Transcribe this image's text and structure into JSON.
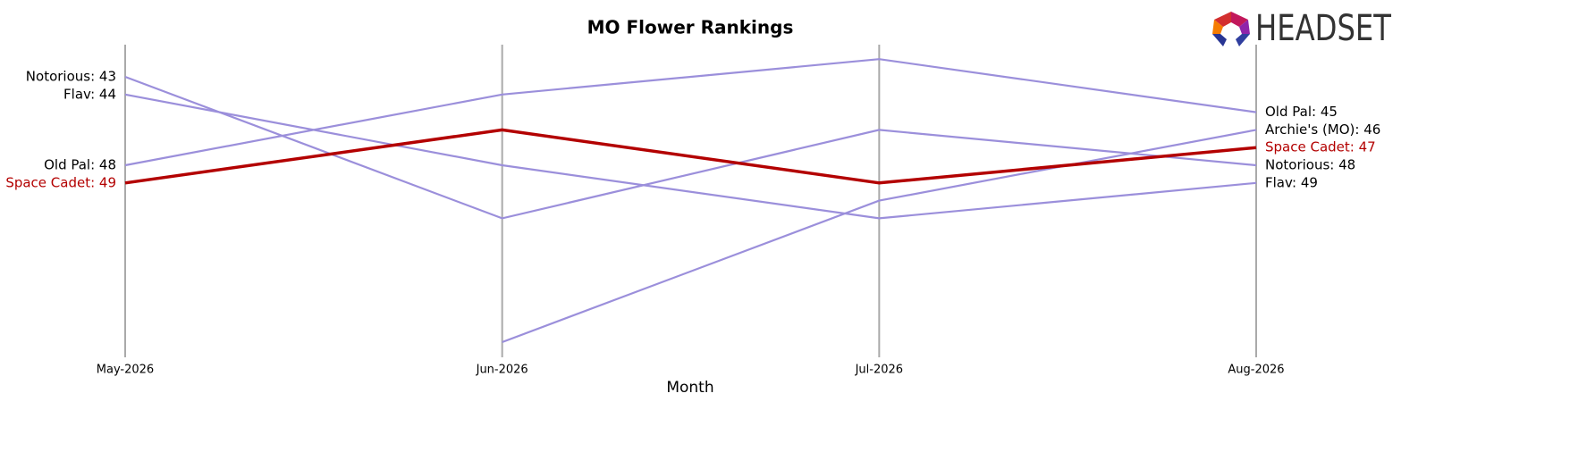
{
  "chart_data": {
    "type": "bump",
    "title": "MO Flower Rankings",
    "x_label": "Month",
    "logo": "HEADSET",
    "categories": [
      "May-2026",
      "Jun-2026",
      "Jul-2026",
      "Aug-2026"
    ],
    "ylim": [
      41,
      59
    ],
    "y_inverted": true,
    "series": [
      {
        "name": "Notorious",
        "color": "#9b8fdb",
        "values": [
          43,
          51,
          46,
          48
        ],
        "value_labels": [
          "Notorious: 43",
          null,
          null,
          "Notorious: 48"
        ]
      },
      {
        "name": "Flav",
        "color": "#9b8fdb",
        "values": [
          44,
          48,
          51,
          49
        ],
        "value_labels": [
          "Flav: 44",
          null,
          null,
          "Flav: 49"
        ]
      },
      {
        "name": "Old Pal",
        "color": "#9b8fdb",
        "values": [
          48,
          44,
          42,
          45
        ],
        "value_labels": [
          "Old Pal: 48",
          null,
          null,
          "Old Pal: 45"
        ]
      },
      {
        "name": "Archie's (MO)",
        "color": "#9b8fdb",
        "values": [
          null,
          58,
          50,
          46
        ],
        "value_labels": [
          null,
          null,
          null,
          "Archie's (MO): 46"
        ]
      },
      {
        "name": "Space Cadet",
        "color": "#b30000",
        "highlight": true,
        "values": [
          49,
          46,
          49,
          47
        ],
        "value_labels": [
          "Space Cadet: 49",
          null,
          null,
          "Space Cadet: 47"
        ]
      }
    ]
  }
}
